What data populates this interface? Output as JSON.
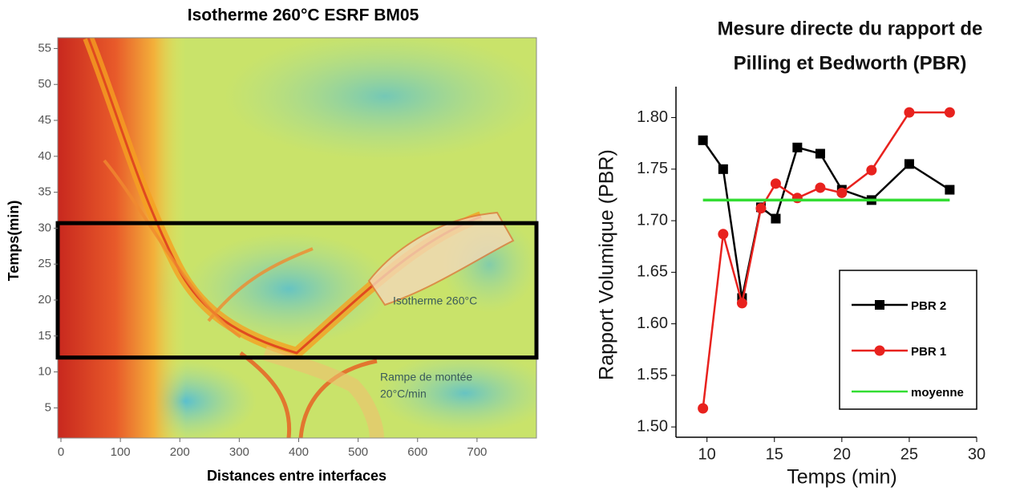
{
  "chart_data": [
    {
      "type": "contour",
      "title": "Isotherme 260°C    ESRF BM05",
      "xlabel": "Distances entre interfaces",
      "ylabel": "Temps(min)",
      "xlim": [
        0,
        800
      ],
      "xticks": [
        0,
        100,
        200,
        300,
        400,
        500,
        600,
        700
      ],
      "ylim": [
        0.8,
        56.5
      ],
      "yticks": [
        5,
        10,
        15,
        20,
        25,
        30,
        35,
        40,
        45,
        50,
        55
      ],
      "highlight_y": [
        12,
        30.7
      ],
      "annotations": [
        "Isotherme 260°C",
        "Rampe de montée",
        "20°C/min"
      ]
    },
    {
      "type": "line",
      "title": [
        "Mesure directe du rapport de",
        "Pilling et Bedworth (PBR)"
      ],
      "xlabel": "Temps (min)",
      "ylabel": "Rapport Volumique (PBR)",
      "xlim": [
        7.7,
        30
      ],
      "xticks": [
        10,
        15,
        20,
        25,
        30
      ],
      "ylim": [
        1.49,
        1.83
      ],
      "yticks": [
        {
          "value": 1.5,
          "label": "1.50"
        },
        {
          "value": 1.55,
          "label": "1.55"
        },
        {
          "value": 1.6,
          "label": "1.60"
        },
        {
          "value": 1.65,
          "label": "1.65"
        },
        {
          "value": 1.7,
          "label": "1.70"
        },
        {
          "value": 1.75,
          "label": "1.75"
        },
        {
          "value": 1.8,
          "label": "1.80"
        }
      ],
      "x": [
        9.7,
        11.2,
        12.6,
        14,
        15.1,
        16.7,
        18.4,
        20,
        22.2,
        25,
        28
      ],
      "series": [
        {
          "name": "PBR 2",
          "color": "#000000",
          "marker": "square",
          "values": [
            1.778,
            1.75,
            1.625,
            1.713,
            1.702,
            1.771,
            1.765,
            1.73,
            1.72,
            1.755,
            1.73
          ]
        },
        {
          "name": "PBR 1",
          "color": "#e8221e",
          "marker": "circle",
          "values": [
            1.518,
            1.687,
            1.62,
            1.712,
            1.736,
            1.722,
            1.732,
            1.727,
            1.749,
            1.805,
            1.805
          ]
        },
        {
          "name": "moyenne",
          "color": "#33dd33",
          "marker": "none",
          "values": [
            1.72,
            1.72,
            1.72,
            1.72,
            1.72,
            1.72,
            1.72,
            1.72,
            1.72,
            1.72,
            1.72
          ]
        }
      ],
      "legend": "lower right"
    }
  ]
}
